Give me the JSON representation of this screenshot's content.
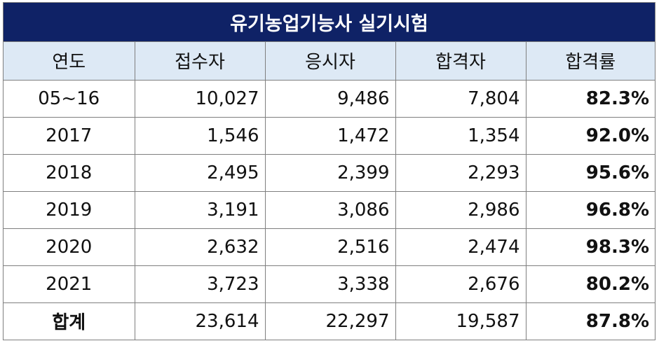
{
  "title": "유기농업기능사 실기시험",
  "headers": [
    "연도",
    "접수자",
    "응시자",
    "합격자",
    "합격률"
  ],
  "rows": [
    {
      "year": "05~16",
      "applicants": "10,027",
      "examinees": "9,486",
      "passed": "7,804",
      "rate": "82.3%"
    },
    {
      "year": "2017",
      "applicants": "1,546",
      "examinees": "1,472",
      "passed": "1,354",
      "rate": "92.0%"
    },
    {
      "year": "2018",
      "applicants": "2,495",
      "examinees": "2,399",
      "passed": "2,293",
      "rate": "95.6%"
    },
    {
      "year": "2019",
      "applicants": "3,191",
      "examinees": "3,086",
      "passed": "2,986",
      "rate": "96.8%"
    },
    {
      "year": "2020",
      "applicants": "2,632",
      "examinees": "2,516",
      "passed": "2,474",
      "rate": "98.3%"
    },
    {
      "year": "2021",
      "applicants": "3,723",
      "examinees": "3,338",
      "passed": "2,676",
      "rate": "80.2%"
    }
  ],
  "total": {
    "label": "합계",
    "applicants": "23,614",
    "examinees": "22,297",
    "passed": "19,587",
    "rate": "87.8%"
  },
  "colors": {
    "title_bg": "#0f2266",
    "header_bg": "#dde9f5",
    "border": "#7f7f7f"
  }
}
